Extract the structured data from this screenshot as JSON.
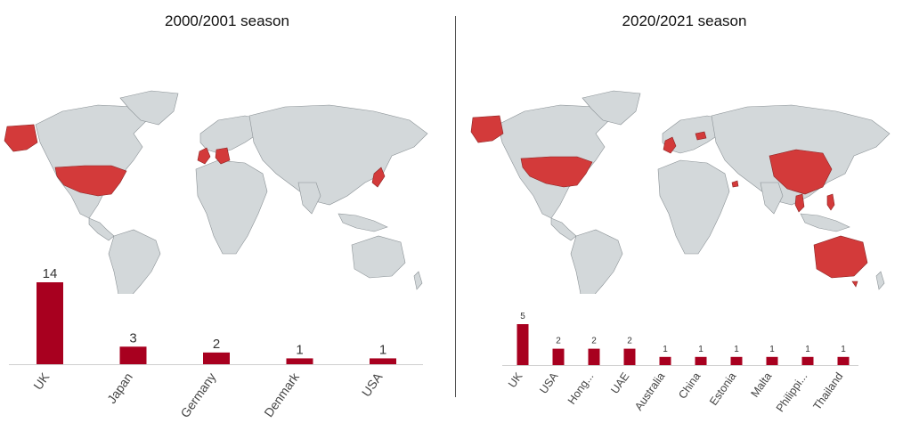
{
  "titles": {
    "left": "2000/2001 season",
    "right": "2020/2021 season"
  },
  "colors": {
    "bar": "#a8001f",
    "highlight": "#d33a3a",
    "land": "#d3d8da",
    "border": "#8b9296"
  },
  "chart_data": [
    {
      "type": "bar",
      "title": "2000/2001 season",
      "categories": [
        "UK",
        "Japan",
        "Germany",
        "Denmark",
        "USA"
      ],
      "values": [
        14,
        3,
        2,
        1,
        1
      ],
      "highlighted_countries": [
        "Alaska/USA",
        "USA",
        "UK",
        "Germany",
        "Denmark",
        "Japan"
      ]
    },
    {
      "type": "bar",
      "title": "2020/2021 season",
      "categories": [
        "UK",
        "USA",
        "Hong...",
        "UAE",
        "Australia",
        "China",
        "Estonia",
        "Malta",
        "Philippi...",
        "Thailand"
      ],
      "values": [
        5,
        2,
        2,
        2,
        1,
        1,
        1,
        1,
        1,
        1
      ],
      "highlighted_countries": [
        "USA",
        "UK",
        "Estonia",
        "China",
        "Hong Kong",
        "UAE",
        "Australia",
        "Malta",
        "Philippines",
        "Thailand"
      ]
    }
  ]
}
